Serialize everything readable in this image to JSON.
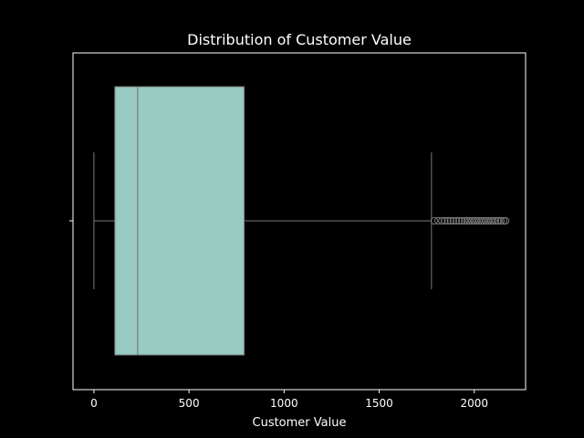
{
  "chart_data": {
    "type": "box",
    "title": "Distribution of Customer Value",
    "xlabel": "Customer Value",
    "ylabel": "",
    "xlim": [
      -110,
      2270
    ],
    "xticks": [
      0,
      500,
      1000,
      1500,
      2000
    ],
    "xtick_labels": [
      "0",
      "500",
      "1000",
      "1500",
      "2000"
    ],
    "orientation": "horizontal",
    "grid": false,
    "box": {
      "whisker_low": 0,
      "q1": 110,
      "median": 230,
      "q3": 790,
      "whisker_high": 1775,
      "outliers": [
        1790,
        1810,
        1830,
        1845,
        1860,
        1875,
        1890,
        1905,
        1920,
        1935,
        1950,
        1962,
        1975,
        1988,
        2000,
        2012,
        2025,
        2038,
        2050,
        2062,
        2075,
        2088,
        2100,
        2112,
        2125,
        2140,
        2155,
        2165
      ]
    },
    "colors": {
      "background": "#000000",
      "box_fill": "#98cbc2",
      "line": "#7a7a7a",
      "axis": "#ffffff",
      "text": "#ffffff"
    }
  }
}
